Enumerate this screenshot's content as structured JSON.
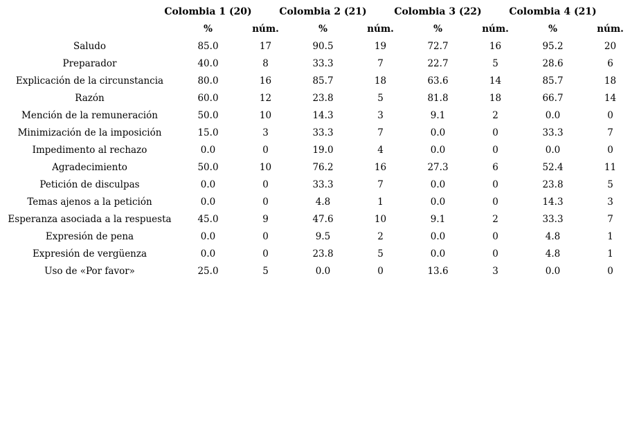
{
  "page": {
    "background_color": "#ffffff",
    "text_color": "#000000"
  },
  "table": {
    "col_groups": [
      {
        "label": "Colombia 1 (20)"
      },
      {
        "label": "Colombia 2 (21)"
      },
      {
        "label": "Colombia 3 (22)"
      },
      {
        "label": "Colombia 4 (21)"
      }
    ],
    "sub_headers": [
      "%",
      "núm."
    ],
    "rows": [
      {
        "label": "Saludo",
        "cells": [
          "85.0",
          "17",
          "90.5",
          "19",
          "72.7",
          "16",
          "95.2",
          "20"
        ]
      },
      {
        "label": "Preparador",
        "cells": [
          "40.0",
          "8",
          "33.3",
          "7",
          "22.7",
          "5",
          "28.6",
          "6"
        ]
      },
      {
        "label": "Explicación de la circunstancia",
        "cells": [
          "80.0",
          "16",
          "85.7",
          "18",
          "63.6",
          "14",
          "85.7",
          "18"
        ]
      },
      {
        "label": "Razón",
        "cells": [
          "60.0",
          "12",
          "23.8",
          "5",
          "81.8",
          "18",
          "66.7",
          "14"
        ]
      },
      {
        "label": "Mención de la remuneración",
        "cells": [
          "50.0",
          "10",
          "14.3",
          "3",
          "9.1",
          "2",
          "0.0",
          "0"
        ]
      },
      {
        "label": "Minimización de la imposición",
        "cells": [
          "15.0",
          "3",
          "33.3",
          "7",
          "0.0",
          "0",
          "33.3",
          "7"
        ]
      },
      {
        "label": "Impedimento al rechazo",
        "cells": [
          "0.0",
          "0",
          "19.0",
          "4",
          "0.0",
          "0",
          "0.0",
          "0"
        ]
      },
      {
        "label": "Agradecimiento",
        "cells": [
          "50.0",
          "10",
          "76.2",
          "16",
          "27.3",
          "6",
          "52.4",
          "11"
        ]
      },
      {
        "label": "Petición de disculpas",
        "cells": [
          "0.0",
          "0",
          "33.3",
          "7",
          "0.0",
          "0",
          "23.8",
          "5"
        ]
      },
      {
        "label": "Temas ajenos a la petición",
        "cells": [
          "0.0",
          "0",
          "4.8",
          "1",
          "0.0",
          "0",
          "14.3",
          "3"
        ]
      },
      {
        "label": "Esperanza asociada a la respuesta",
        "cells": [
          "45.0",
          "9",
          "47.6",
          "10",
          "9.1",
          "2",
          "33.3",
          "7"
        ]
      },
      {
        "label": "Expresión de pena",
        "cells": [
          "0.0",
          "0",
          "9.5",
          "2",
          "0.0",
          "0",
          "4.8",
          "1"
        ]
      },
      {
        "label": "Expresión de vergüenza",
        "cells": [
          "0.0",
          "0",
          "23.8",
          "5",
          "0.0",
          "0",
          "4.8",
          "1"
        ]
      },
      {
        "label": "Uso de «Por favor»",
        "cells": [
          "25.0",
          "5",
          "0.0",
          "0",
          "13.6",
          "3",
          "0.0",
          "0"
        ]
      }
    ]
  }
}
